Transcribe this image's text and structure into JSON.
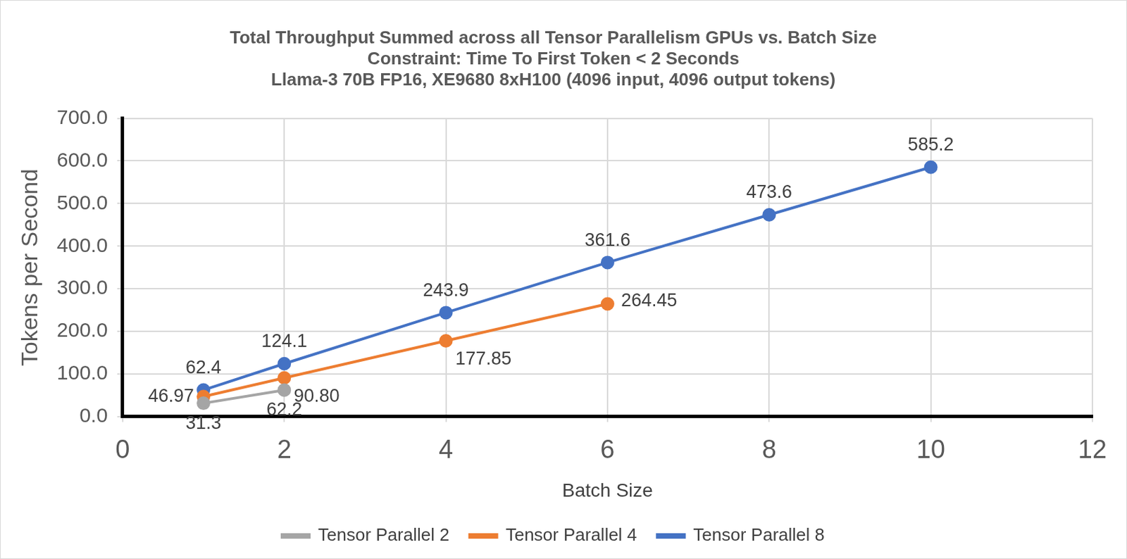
{
  "chart_data": {
    "type": "line",
    "title": [
      "Total Throughput Summed across all Tensor Parallelism GPUs vs. Batch Size",
      "Constraint: Time To First Token < 2 Seconds",
      "Llama-3 70B FP16, XE9680 8xH100 (4096 input, 4096 output tokens)"
    ],
    "x_label": "Batch Size",
    "y_label": "Tokens per Second",
    "x": [
      1,
      2,
      4,
      6,
      8,
      10
    ],
    "series": [
      {
        "name": "Tensor Parallel 2",
        "color": "#a5a5a5",
        "values": [
          31.3,
          62.2,
          null,
          null,
          null,
          null
        ]
      },
      {
        "name": "Tensor Parallel 4",
        "color": "#ed7d31",
        "values": [
          46.97,
          90.8,
          177.85,
          264.45,
          null,
          null
        ],
        "value_labels": [
          "46.97",
          "90.80",
          "177.85",
          "264.45",
          null,
          null
        ]
      },
      {
        "name": "Tensor Parallel 8",
        "color": "#4472c4",
        "values": [
          62.4,
          124.1,
          243.9,
          361.6,
          473.6,
          585.2
        ]
      }
    ],
    "xlim": [
      0,
      12
    ],
    "xticks": [
      0,
      2,
      4,
      6,
      8,
      10,
      12
    ],
    "ylim": [
      0,
      700
    ],
    "yticks": [
      {
        "value": 0,
        "label": "0.0"
      },
      {
        "value": 100,
        "label": "100.0"
      },
      {
        "value": 200,
        "label": "200.0"
      },
      {
        "value": 300,
        "label": "300.0"
      },
      {
        "value": 400,
        "label": "400.0"
      },
      {
        "value": 500,
        "label": "500.0"
      },
      {
        "value": 600,
        "label": "600.0"
      },
      {
        "value": 700,
        "label": "700.0"
      }
    ],
    "grid": true,
    "legend": "bottom",
    "marker": "circle",
    "data_labels": true
  }
}
